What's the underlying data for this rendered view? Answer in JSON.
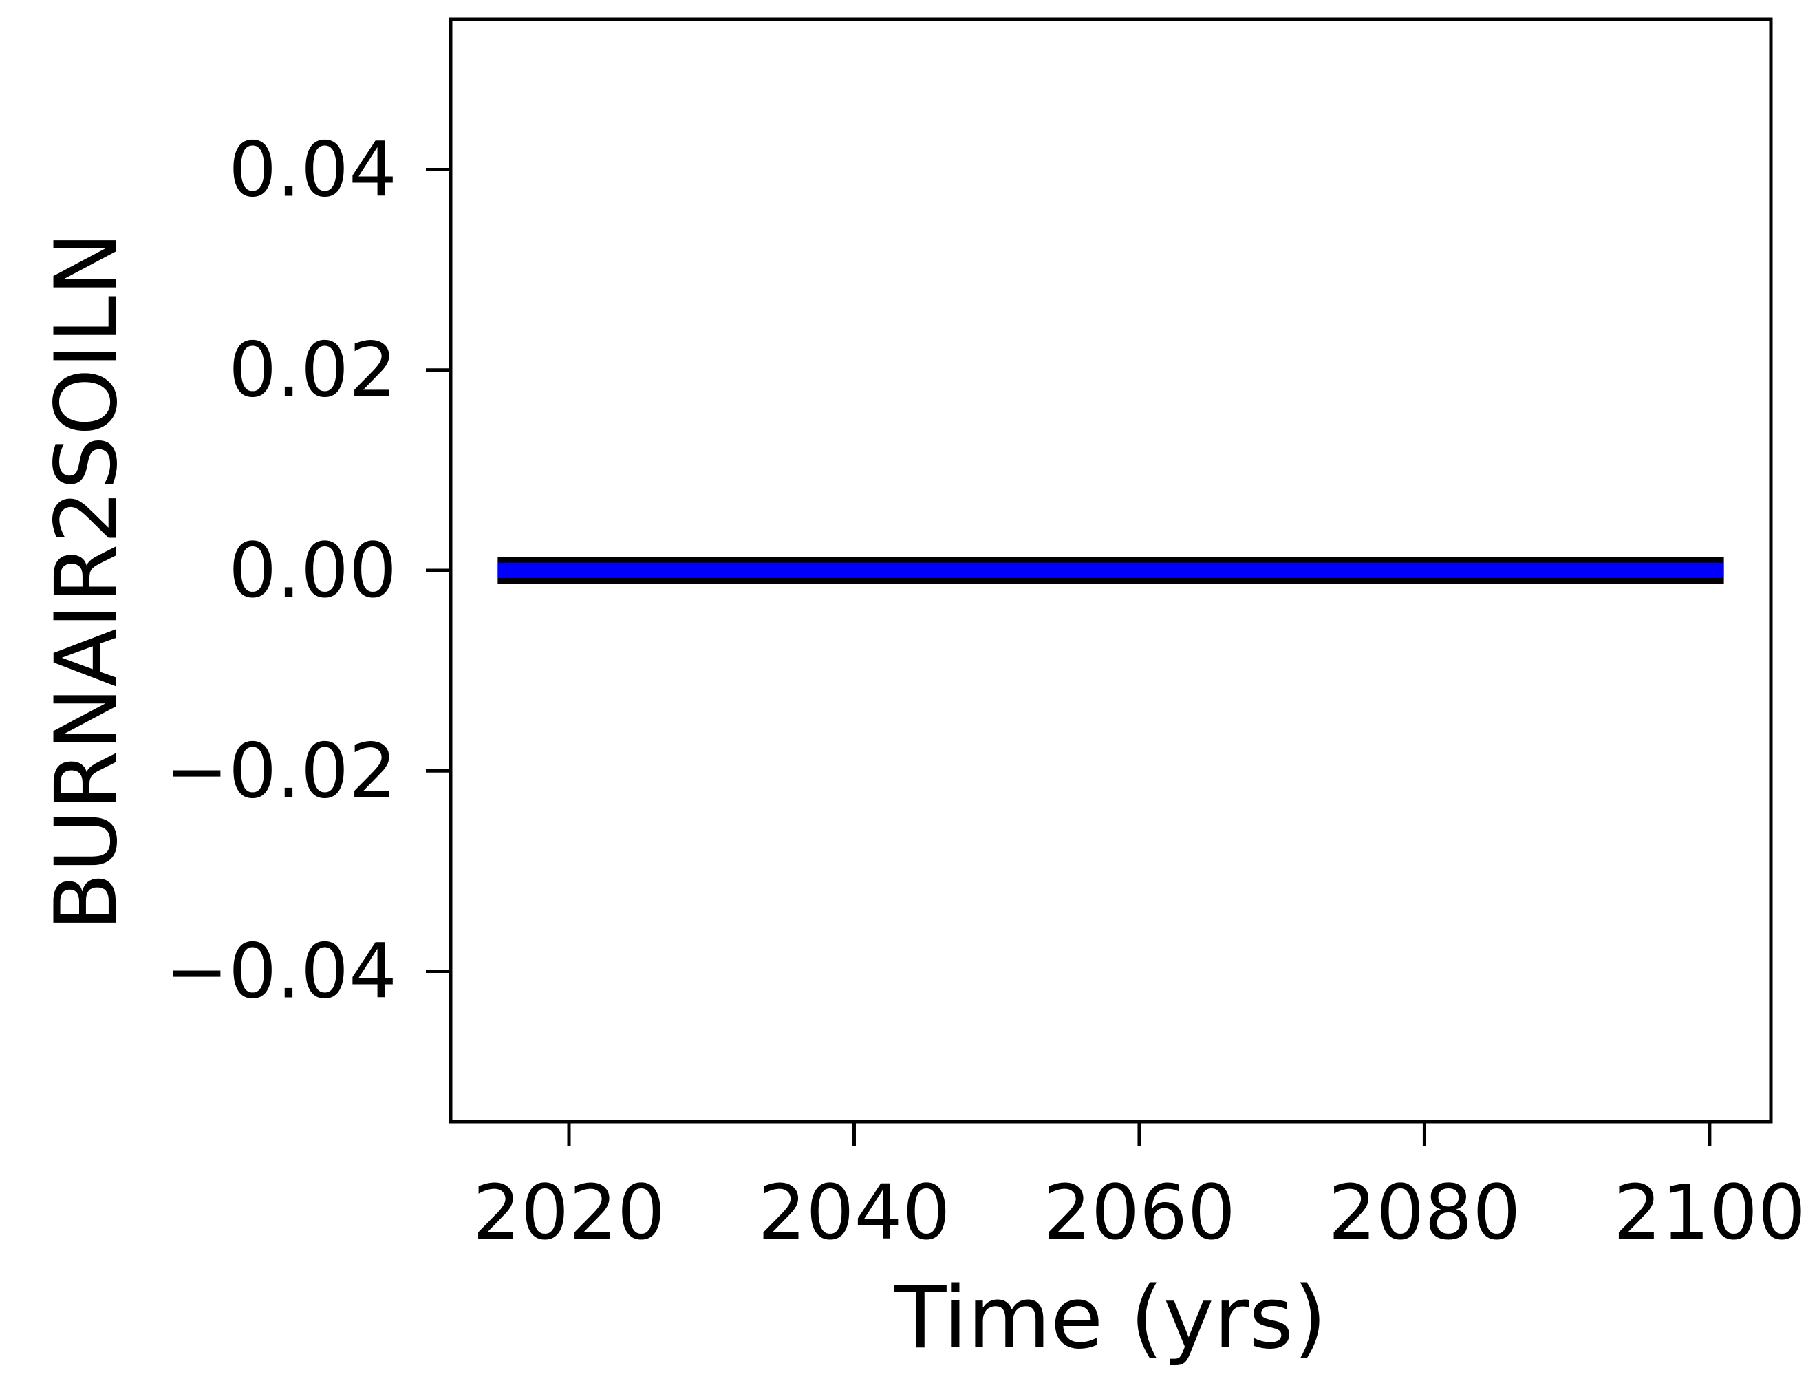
{
  "chart_data": {
    "type": "line",
    "title": "",
    "xlabel": "Time (yrs)",
    "ylabel": "BURNAIR2SOILN",
    "xlim": [
      2011.7,
      2104.3
    ],
    "ylim": [
      -0.055,
      0.055
    ],
    "x_ticks": [
      2020,
      2040,
      2060,
      2080,
      2100
    ],
    "x_tick_labels": [
      "2020",
      "2040",
      "2060",
      "2080",
      "2100"
    ],
    "y_ticks": [
      0.04,
      0.02,
      0.0,
      -0.02,
      -0.04
    ],
    "y_tick_labels": [
      "0.04",
      "0.02",
      "0.00",
      "−0.02",
      "−0.04"
    ],
    "grid": false,
    "legend": "none",
    "series": [
      {
        "x": [
          2015,
          2101
        ],
        "y": [
          0,
          0
        ],
        "color": "#0000ff",
        "edge_color": "#000000"
      }
    ]
  }
}
